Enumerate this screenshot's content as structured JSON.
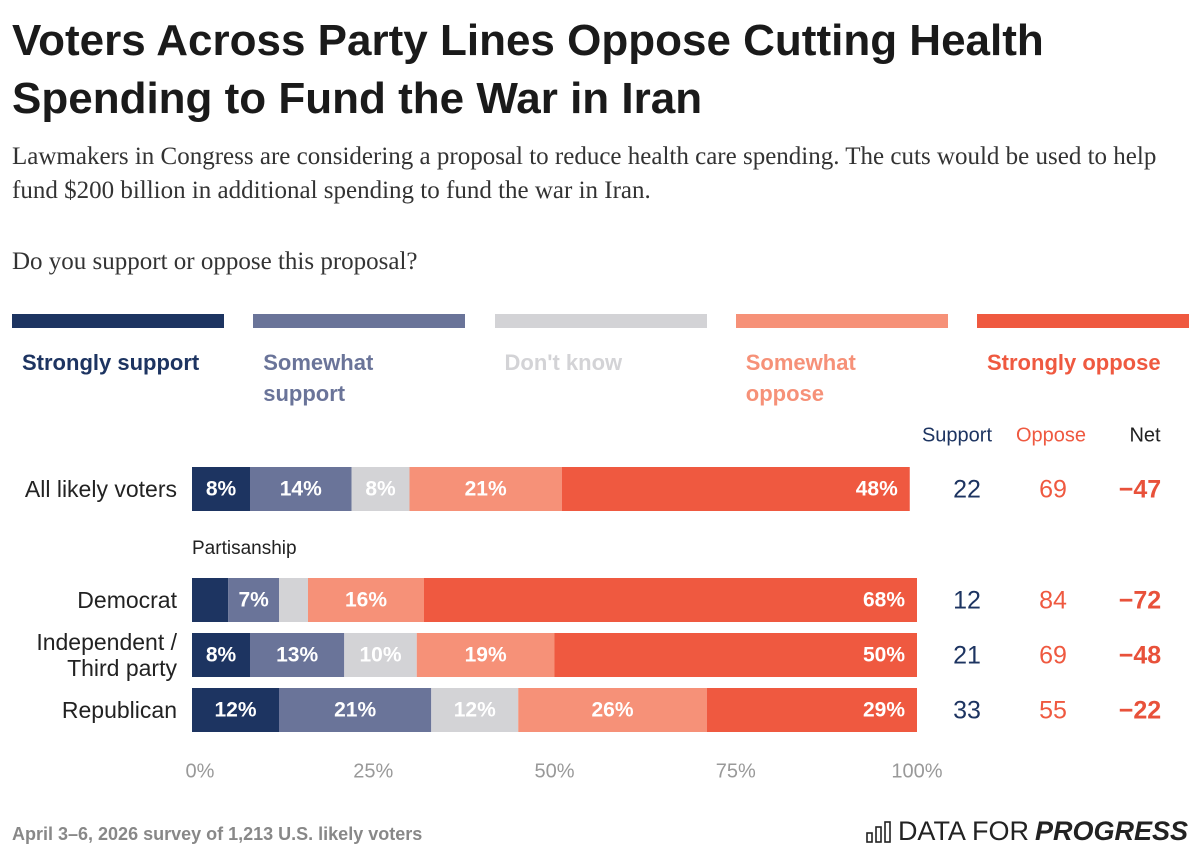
{
  "chart_data": {
    "type": "stacked_bar_horizontal",
    "title": "Voters Across Party Lines Oppose Cutting Health Spending to Fund the War in Iran",
    "subtitle": "Lawmakers in Congress are considering a proposal to reduce health care spending. The cuts would be used to help fund $200 billion in additional spending to fund the war in Iran.",
    "question": "Do you support or oppose this proposal?",
    "categories": [
      "All likely voters",
      "Democrat",
      "Independent / Third party",
      "Republican"
    ],
    "group_label": "Partisanship",
    "series": [
      {
        "name": "Strongly support",
        "color": "#1d3461",
        "values": [
          8,
          5,
          8,
          12
        ],
        "value_labels": [
          "8%",
          null,
          "8%",
          "12%"
        ]
      },
      {
        "name": "Somewhat support",
        "color": "#6a7499",
        "values": [
          14,
          7,
          13,
          21
        ],
        "value_labels": [
          "14%",
          "7%",
          "13%",
          "21%"
        ]
      },
      {
        "name": "Don't know",
        "color": "#d3d3d6",
        "values": [
          8,
          4,
          10,
          12
        ],
        "value_labels": [
          "8%",
          null,
          "10%",
          "12%"
        ]
      },
      {
        "name": "Somewhat oppose",
        "color": "#f69178",
        "values": [
          21,
          16,
          19,
          26
        ],
        "value_labels": [
          "21%",
          "16%",
          "19%",
          "26%"
        ]
      },
      {
        "name": "Strongly oppose",
        "color": "#ef5940",
        "values": [
          48,
          68,
          50,
          29
        ],
        "value_labels": [
          "48%",
          "68%",
          "50%",
          "29%"
        ]
      }
    ],
    "xlim": [
      0,
      100
    ],
    "xticks": [
      {
        "value": 0,
        "label": "0%"
      },
      {
        "value": 25,
        "label": "25%"
      },
      {
        "value": 50,
        "label": "50%"
      },
      {
        "value": 75,
        "label": "75%"
      },
      {
        "value": 100,
        "label": "100%"
      }
    ],
    "grid": false,
    "summary": [
      {
        "name": "Support",
        "color": "#1d3461",
        "values": [
          22,
          12,
          21,
          33
        ]
      },
      {
        "name": "Oppose",
        "color": "#ef5940",
        "values": [
          69,
          84,
          69,
          55
        ]
      },
      {
        "name": "Net",
        "color": "#e8513a",
        "values": [
          -47,
          -72,
          -48,
          -22
        ],
        "value_labels": [
          "−47",
          "−72",
          "−48",
          "−22"
        ]
      }
    ],
    "source": "April 3–6, 2026 survey of 1,213 U.S. likely voters",
    "brand": [
      "DATA FOR",
      "PROGRESS"
    ]
  }
}
